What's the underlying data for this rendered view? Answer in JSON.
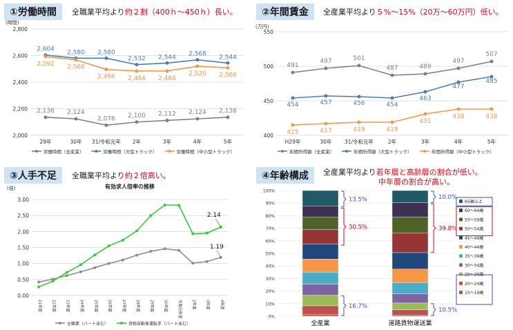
{
  "panels": {
    "hours": {
      "badge": "①労働時間",
      "summary_prefix": "全職業平均より",
      "summary_highlight": "約２割（400ｈ～450ｈ）長い。"
    },
    "wages": {
      "badge": "②年間賃金",
      "summary_prefix": "全産業平均より",
      "summary_highlight": "５%～15%（20万～60万円）低い。"
    },
    "labor": {
      "badge": "③人手不足",
      "summary_prefix": "全職業平均より",
      "summary_highlight": "約２倍高い。"
    },
    "age": {
      "badge": "④年齢構成",
      "summary_prefix": "全産業平均より",
      "summary_highlight": "若年層と高齢層の割合が低い。",
      "summary_line2": "中年層の割合が高い。"
    }
  },
  "chart_data": [
    {
      "type": "line",
      "ylabel": "(時間)",
      "ylim": [
        2000,
        2800
      ],
      "yticks": [
        "2,800",
        "2,600",
        "2,400",
        "2,200",
        "2,000"
      ],
      "categories": [
        "29年",
        "30年",
        "31/令和元年",
        "2年",
        "3年",
        "4年",
        "5年"
      ],
      "series": [
        {
          "name": "労働時間（全産業）",
          "color": "#7f7f7f",
          "values": [
            2136,
            2124,
            2076,
            2100,
            2112,
            2124,
            2136
          ],
          "labels": [
            "2,136",
            "2,124",
            "2,076",
            "2,100",
            "2,112",
            "2,124",
            "2,136"
          ]
        },
        {
          "name": "労働時間（大型トラック）",
          "color": "#4a7ebb",
          "values": [
            2604,
            2580,
            2580,
            2532,
            2544,
            2568,
            2544
          ],
          "labels": [
            "2,604",
            "2,580",
            "2,580",
            "2,532",
            "2,544",
            "2,568",
            "2,544"
          ]
        },
        {
          "name": "労働時間（中小型トラック）",
          "color": "#f79646",
          "values": [
            2592,
            2568,
            2496,
            2484,
            2484,
            2520,
            2508
          ],
          "labels": [
            "2,592",
            "2,568",
            "2,496",
            "2,484",
            "2,484",
            "2,520",
            "2,508"
          ]
        }
      ]
    },
    {
      "type": "line",
      "ylabel": "(万円)",
      "ylim": [
        400,
        550
      ],
      "yticks": [
        "550",
        "500",
        "450",
        "400"
      ],
      "categories": [
        "H29年",
        "30年",
        "31/令和元年",
        "2年",
        "3年",
        "4年",
        "5年"
      ],
      "series": [
        {
          "name": "年間所得額（全産業）",
          "color": "#7f7f7f",
          "values": [
            491,
            497,
            501,
            487,
            489,
            497,
            507
          ]
        },
        {
          "name": "年間所得額（大型トラック）",
          "color": "#4a7ebb",
          "values": [
            454,
            457,
            456,
            454,
            463,
            477,
            485
          ]
        },
        {
          "name": "年間所得額（中小型トラック）",
          "color": "#f79646",
          "values": [
            415,
            417,
            419,
            419,
            431,
            438,
            438
          ]
        }
      ]
    },
    {
      "type": "line",
      "title": "有効求人倍率の推移",
      "ylabel": "(倍)",
      "ylim": [
        0,
        3.0
      ],
      "yticks": [
        "3.00",
        "2.50",
        "2.00",
        "1.50",
        "1.00",
        "0.50",
        "0.00"
      ],
      "categories": [
        "21年度",
        "22年度",
        "23年度",
        "24年度",
        "25年度",
        "26年度",
        "27年度",
        "28年度",
        "29年度",
        "30年度",
        "令和元年度",
        "2年度",
        "3年度",
        "4年度"
      ],
      "series": [
        {
          "name": "全職業（パート含む）",
          "color": "#8c8c8c",
          "values": [
            0.42,
            0.51,
            0.62,
            0.74,
            0.87,
            1.0,
            1.11,
            1.26,
            1.38,
            1.46,
            1.41,
            1.01,
            1.06,
            1.19
          ]
        },
        {
          "name": "貨物自動車運転手（パート含む）",
          "color": "#33cc33",
          "values": [
            0.27,
            0.45,
            0.72,
            0.96,
            1.27,
            1.55,
            1.73,
            2.02,
            2.5,
            2.83,
            2.82,
            1.93,
            1.95,
            2.14
          ]
        }
      ],
      "annotations": [
        "2.14",
        "1.19"
      ]
    },
    {
      "type": "bar",
      "stacked": true,
      "yticks": [
        "100%",
        "90%",
        "80%",
        "70%",
        "60%",
        "50%",
        "40%",
        "30%",
        "20%",
        "10%",
        "0%"
      ],
      "categories": [
        "全産業",
        "道路貨物運送業"
      ],
      "series": [
        {
          "name": "15～19歳",
          "color": "#c0504d",
          "values": [
            1.5,
            0.7
          ]
        },
        {
          "name": "20～24歳",
          "color": "#c0504d",
          "values": [
            6.8,
            4.4
          ]
        },
        {
          "name": "25～29歳",
          "color": "#9bbb59",
          "values": [
            8.4,
            5.4
          ]
        },
        {
          "name": "30～34歳",
          "color": "#8064a2",
          "values": [
            8.8,
            7.2
          ]
        },
        {
          "name": "35～39歳",
          "color": "#4bacc6",
          "values": [
            9.6,
            9.0
          ]
        },
        {
          "name": "40～44歳",
          "color": "#f79646",
          "values": [
            10.4,
            10.8
          ]
        },
        {
          "name": "45～49歳",
          "color": "#1f497d",
          "values": [
            11.8,
            13.1
          ]
        },
        {
          "name": "50～54歳",
          "color": "#943634",
          "values": [
            11.6,
            15.7
          ]
        },
        {
          "name": "55～59歳",
          "color": "#4f6228",
          "values": [
            10.1,
            12.6
          ]
        },
        {
          "name": "60～64歳",
          "color": "#3f3151",
          "values": [
            8.8,
            11.5
          ]
        },
        {
          "name": "65歳以上",
          "color": "#215967",
          "values": [
            12.2,
            9.6
          ]
        }
      ],
      "brackets": [
        {
          "label": "13.5%",
          "color": "#3a4fd1"
        },
        {
          "label": "30.5%",
          "color": "#e60012"
        },
        {
          "label": "16.7%",
          "color": "#3a4fd1"
        },
        {
          "label": "10.0%",
          "color": "#3a4fd1"
        },
        {
          "label": "39.8%",
          "color": "#e60012"
        },
        {
          "label": "10.5%",
          "color": "#3a4fd1"
        }
      ]
    }
  ]
}
